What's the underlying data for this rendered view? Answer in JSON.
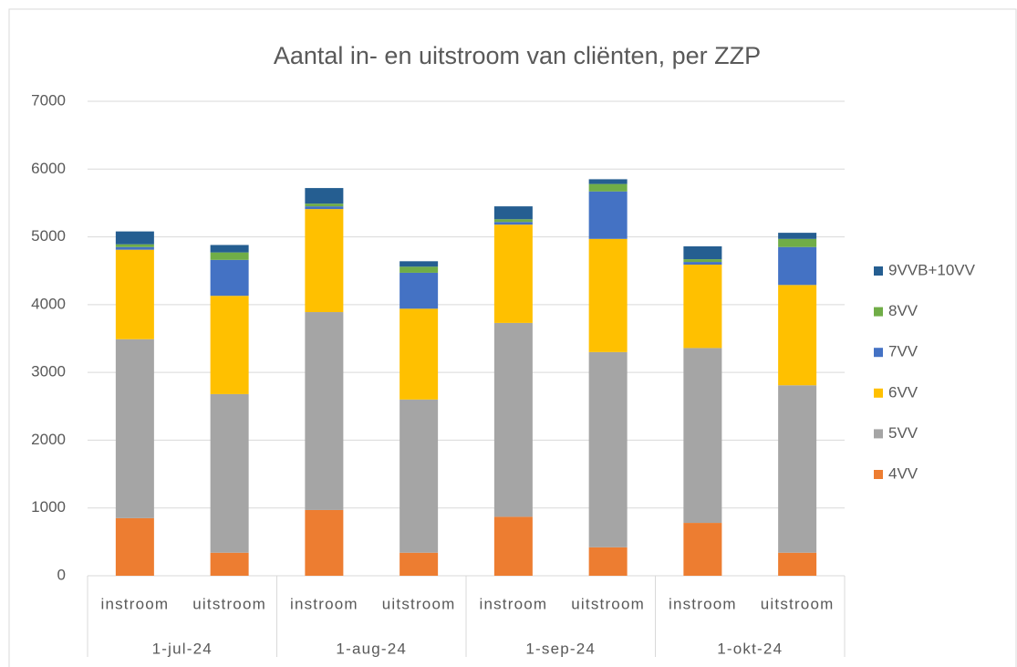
{
  "chart_data": {
    "type": "stacked_bar",
    "title": "Aantal in- en uitstroom van cliënten, per ZZP",
    "categories": [
      "instroom",
      "uitstroom",
      "instroom",
      "uitstroom",
      "instroom",
      "uitstroom",
      "instroom",
      "uitstroom"
    ],
    "groups": [
      "1-jul-24",
      "1-aug-24",
      "1-sep-24",
      "1-okt-24"
    ],
    "series": [
      {
        "name": "4VV",
        "color": "#ed7d31",
        "values": [
          850,
          340,
          970,
          340,
          870,
          420,
          780,
          340
        ]
      },
      {
        "name": "5VV",
        "color": "#a5a5a5",
        "values": [
          2640,
          2340,
          2920,
          2260,
          2860,
          2880,
          2580,
          2470
        ]
      },
      {
        "name": "6VV",
        "color": "#ffc000",
        "values": [
          1320,
          1450,
          1520,
          1340,
          1450,
          1670,
          1230,
          1480
        ]
      },
      {
        "name": "7VV",
        "color": "#4472c4",
        "values": [
          40,
          530,
          40,
          530,
          40,
          700,
          40,
          560
        ]
      },
      {
        "name": "8VV",
        "color": "#70ad47",
        "values": [
          40,
          110,
          40,
          90,
          40,
          110,
          40,
          120
        ]
      },
      {
        "name": "9VVB+10VV",
        "color": "#255e91",
        "values": [
          190,
          110,
          230,
          80,
          190,
          70,
          190,
          90
        ]
      }
    ],
    "ylim": [
      0,
      7000
    ],
    "yticks": [
      0,
      1000,
      2000,
      3000,
      4000,
      5000,
      6000,
      7000
    ],
    "grid": true,
    "legend": "right"
  }
}
